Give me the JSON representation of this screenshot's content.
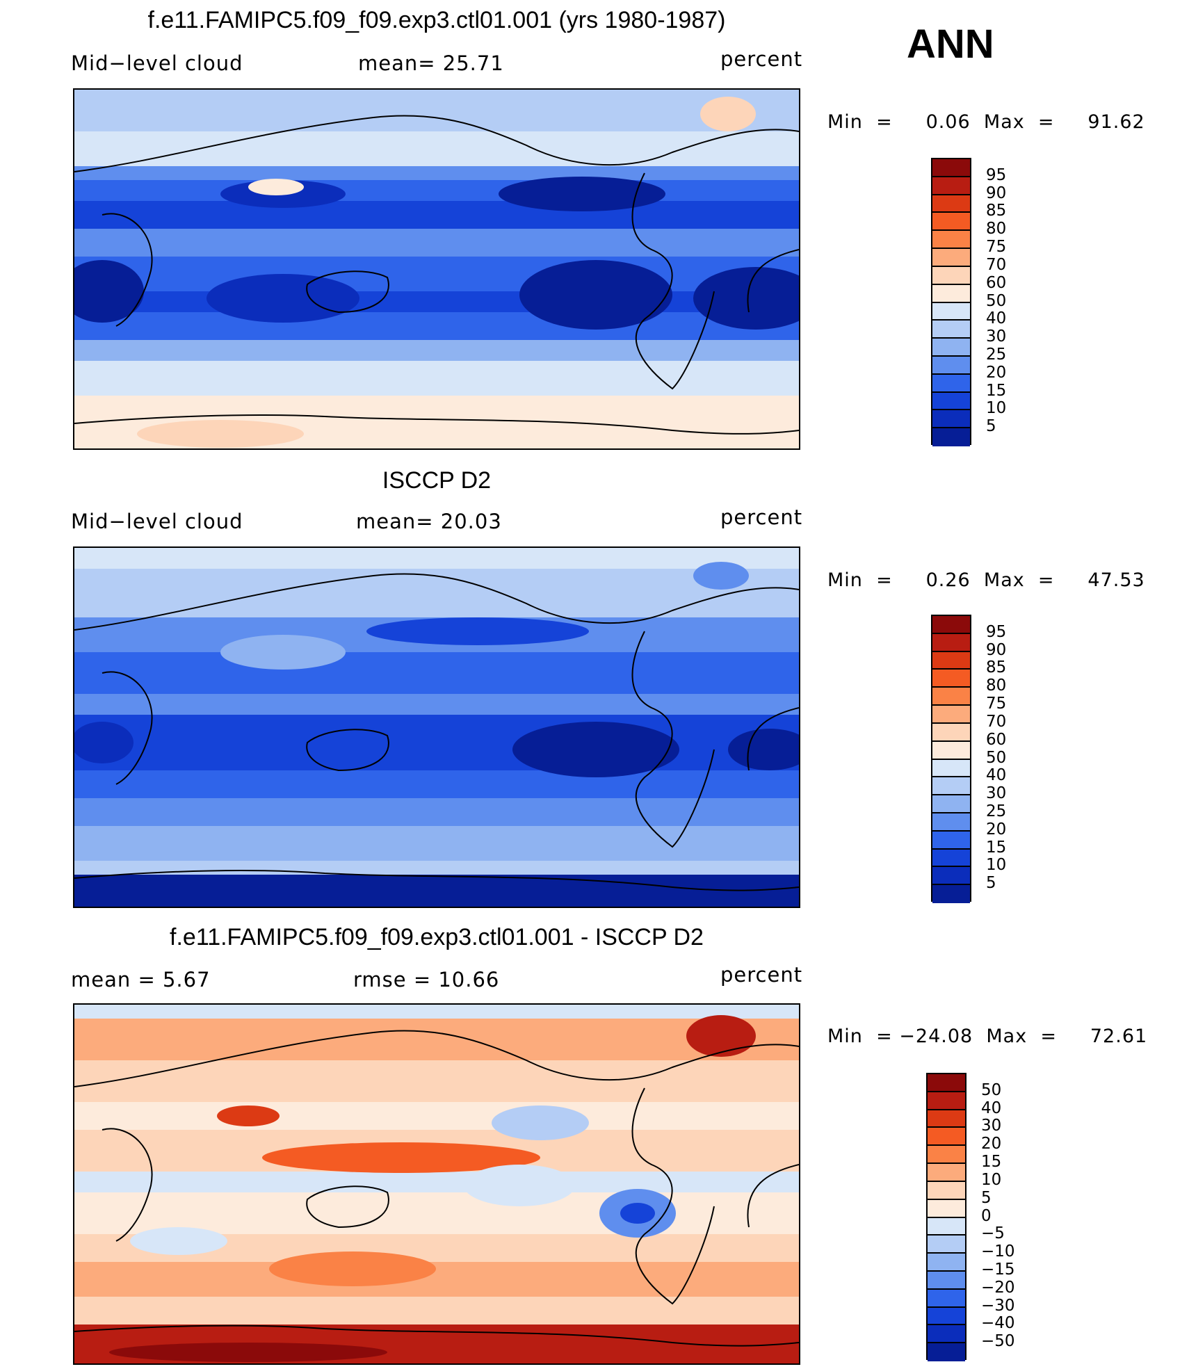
{
  "season": "ANN",
  "panels": [
    {
      "title": "f.e11.FAMIPC5.f09_f09.exp3.ctl01.001 (yrs 1980-1987)",
      "left_label": "Mid−level cloud",
      "mid_label": "mean=   25.71",
      "units": "percent",
      "minmax": "Min  =     0.06  Max  =     91.62",
      "colorbar_labels": [
        "95",
        "90",
        "85",
        "80",
        "75",
        "70",
        "60",
        "50",
        "40",
        "30",
        "25",
        "20",
        "15",
        "10",
        "5"
      ],
      "colorbar_colors": [
        "#8b0a0a",
        "#b81d12",
        "#dc3a14",
        "#f45b23",
        "#fa8246",
        "#fcab7c",
        "#fdd5b9",
        "#fdebdc",
        "#d7e6f8",
        "#b4cdf5",
        "#8fb3f1",
        "#5f8eee",
        "#2f64ea",
        "#1543d8",
        "#0b2dbb",
        "#061e96"
      ]
    },
    {
      "title": "ISCCP D2",
      "left_label": "Mid−level cloud",
      "mid_label": "mean=   20.03",
      "units": "percent",
      "minmax": "Min  =     0.26  Max  =     47.53",
      "colorbar_labels": [
        "95",
        "90",
        "85",
        "80",
        "75",
        "70",
        "60",
        "50",
        "40",
        "30",
        "25",
        "20",
        "15",
        "10",
        "5"
      ],
      "colorbar_colors": [
        "#8b0a0a",
        "#b81d12",
        "#dc3a14",
        "#f45b23",
        "#fa8246",
        "#fcab7c",
        "#fdd5b9",
        "#fdebdc",
        "#d7e6f8",
        "#b4cdf5",
        "#8fb3f1",
        "#5f8eee",
        "#2f64ea",
        "#1543d8",
        "#0b2dbb",
        "#061e96"
      ]
    },
    {
      "title": "f.e11.FAMIPC5.f09_f09.exp3.ctl01.001 - ISCCP D2",
      "left_label": "mean  =     5.67",
      "mid_label": "rmse  =    10.66",
      "units": "percent",
      "minmax": "Min  = −24.08  Max  =     72.61",
      "colorbar_labels": [
        "50",
        "40",
        "30",
        "20",
        "15",
        "10",
        "5",
        "0",
        "−5",
        "−10",
        "−15",
        "−20",
        "−30",
        "−40",
        "−50"
      ],
      "colorbar_colors": [
        "#8b0a0a",
        "#b81d12",
        "#dc3a14",
        "#f45b23",
        "#fa8246",
        "#fcab7c",
        "#fdd5b9",
        "#fdebdc",
        "#d7e6f8",
        "#b4cdf5",
        "#8fb3f1",
        "#5f8eee",
        "#2f64ea",
        "#1543d8",
        "#0b2dbb",
        "#061e96"
      ]
    }
  ]
}
